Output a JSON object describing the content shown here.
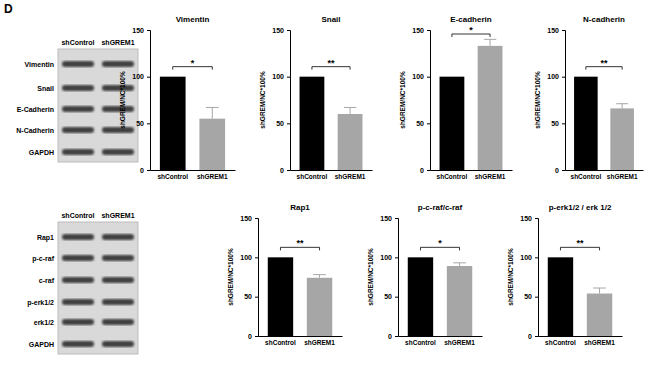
{
  "panel_label": "D",
  "blots": [
    {
      "columns": [
        "shControl",
        "shGREM1"
      ],
      "rows": [
        "Vimentin",
        "Snail",
        "E-Cadherin",
        "N-Cadherin",
        "GAPDH"
      ]
    },
    {
      "columns": [
        "shControl",
        "shGREM1"
      ],
      "rows": [
        "Rap1",
        "p-c-raf",
        "c-raf",
        "p-erk1/2",
        "erk1/2",
        "GAPDH"
      ]
    }
  ],
  "chart_data": [
    {
      "type": "bar",
      "title": "Vimentin",
      "y_label": "shGREM/NC*100%",
      "categories": [
        "shControl",
        "shGREM1"
      ],
      "values": [
        100,
        55
      ],
      "errors": [
        null,
        12
      ],
      "annotation": "*",
      "colors": [
        "#000000",
        "#a6a6a6"
      ],
      "ylim": [
        0,
        150
      ],
      "yticks": [
        0,
        50,
        100,
        150
      ]
    },
    {
      "type": "bar",
      "title": "Snail",
      "y_label": "shGREM/NC*100%",
      "categories": [
        "shControl",
        "shGREM1"
      ],
      "values": [
        100,
        60
      ],
      "errors": [
        null,
        7
      ],
      "annotation": "**",
      "colors": [
        "#000000",
        "#a6a6a6"
      ],
      "ylim": [
        0,
        150
      ],
      "yticks": [
        0,
        50,
        100,
        150
      ]
    },
    {
      "type": "bar",
      "title": "E-cadherin",
      "y_label": "shGREM/NC*100%",
      "categories": [
        "shControl",
        "shGREM1"
      ],
      "values": [
        100,
        133
      ],
      "errors": [
        null,
        7
      ],
      "annotation": "*",
      "colors": [
        "#000000",
        "#a6a6a6"
      ],
      "ylim": [
        0,
        150
      ],
      "yticks": [
        0,
        50,
        100,
        150
      ]
    },
    {
      "type": "bar",
      "title": "N-cadherin",
      "y_label": "shGREM/NC*100%",
      "categories": [
        "shControl",
        "shGREM1"
      ],
      "values": [
        100,
        66
      ],
      "errors": [
        null,
        5
      ],
      "annotation": "**",
      "colors": [
        "#000000",
        "#a6a6a6"
      ],
      "ylim": [
        0,
        150
      ],
      "yticks": [
        0,
        50,
        100,
        150
      ]
    },
    {
      "type": "bar",
      "title": "Rap1",
      "y_label": "shGREM/NC*100%",
      "categories": [
        "shControl",
        "shGREM1"
      ],
      "values": [
        100,
        74
      ],
      "errors": [
        null,
        4
      ],
      "annotation": "**",
      "colors": [
        "#000000",
        "#a6a6a6"
      ],
      "ylim": [
        0,
        150
      ],
      "yticks": [
        0,
        50,
        100,
        150
      ]
    },
    {
      "type": "bar",
      "title": "p-c-raf/c-raf",
      "y_label": "shGREM/NC*100%",
      "categories": [
        "shControl",
        "shGREM1"
      ],
      "values": [
        100,
        89
      ],
      "errors": [
        null,
        4
      ],
      "annotation": "*",
      "colors": [
        "#000000",
        "#a6a6a6"
      ],
      "ylim": [
        0,
        150
      ],
      "yticks": [
        0,
        50,
        100,
        150
      ]
    },
    {
      "type": "bar",
      "title": "p-erk1/2 / erk 1/2",
      "y_label": "shGREM/NC*100%",
      "categories": [
        "shControl",
        "shGREM1"
      ],
      "values": [
        100,
        54
      ],
      "errors": [
        null,
        7
      ],
      "annotation": "**",
      "colors": [
        "#000000",
        "#a6a6a6"
      ],
      "ylim": [
        0,
        150
      ],
      "yticks": [
        0,
        50,
        100,
        150
      ]
    }
  ]
}
